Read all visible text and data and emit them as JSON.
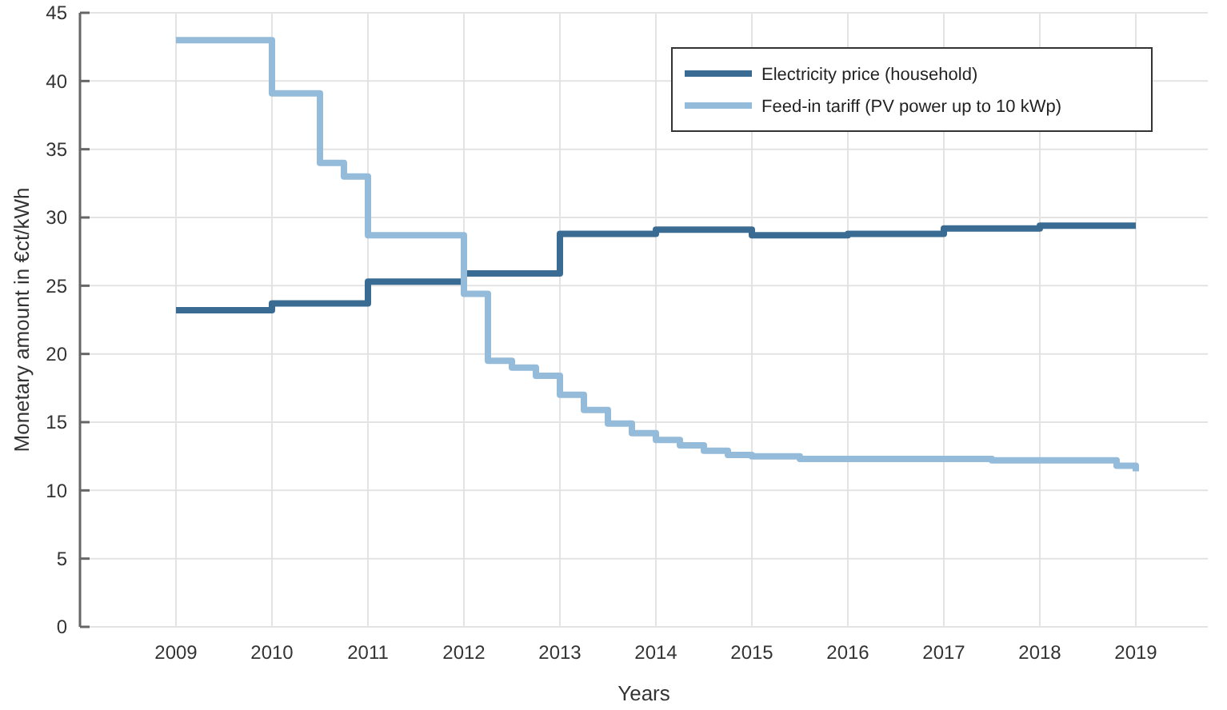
{
  "chart_data": {
    "type": "step",
    "xlabel": "Years",
    "ylabel": "Monetary amount in €ct/kWh",
    "xlim": [
      2008,
      2019.75
    ],
    "xticks": [
      2009,
      2010,
      2011,
      2012,
      2013,
      2014,
      2015,
      2016,
      2017,
      2018,
      2019
    ],
    "ylim": [
      0,
      45
    ],
    "yticks": [
      0,
      5,
      10,
      15,
      20,
      25,
      30,
      35,
      40,
      45
    ],
    "grid": true,
    "legend": "top right",
    "line_style": "solid",
    "marker": "none",
    "series": [
      {
        "name": "Electricity price (household)",
        "color": "#3a6b92",
        "x": [
          2009,
          2010,
          2011,
          2012,
          2013,
          2014,
          2015,
          2016,
          2017,
          2018,
          2019
        ],
        "values": [
          23.2,
          23.7,
          25.3,
          25.9,
          28.8,
          29.1,
          28.7,
          28.8,
          29.2,
          29.4,
          29.4
        ]
      },
      {
        "name": "Feed-in tariff (PV power up to 10 kWp)",
        "color": "#94bbd9",
        "x": [
          2009,
          2010,
          2010.5,
          2010.75,
          2011,
          2012,
          2012.25,
          2012.5,
          2012.75,
          2013,
          2013.25,
          2013.5,
          2013.75,
          2014,
          2014.25,
          2014.5,
          2014.75,
          2015,
          2015.5,
          2016,
          2017,
          2017.5,
          2018,
          2018.6,
          2018.8,
          2019
        ],
        "values": [
          43.0,
          39.1,
          34.0,
          33.0,
          28.7,
          24.4,
          19.5,
          19.0,
          18.4,
          17.0,
          15.9,
          14.9,
          14.2,
          13.7,
          13.3,
          12.9,
          12.6,
          12.5,
          12.3,
          12.3,
          12.3,
          12.2,
          12.2,
          12.2,
          11.8,
          11.4
        ]
      }
    ]
  }
}
